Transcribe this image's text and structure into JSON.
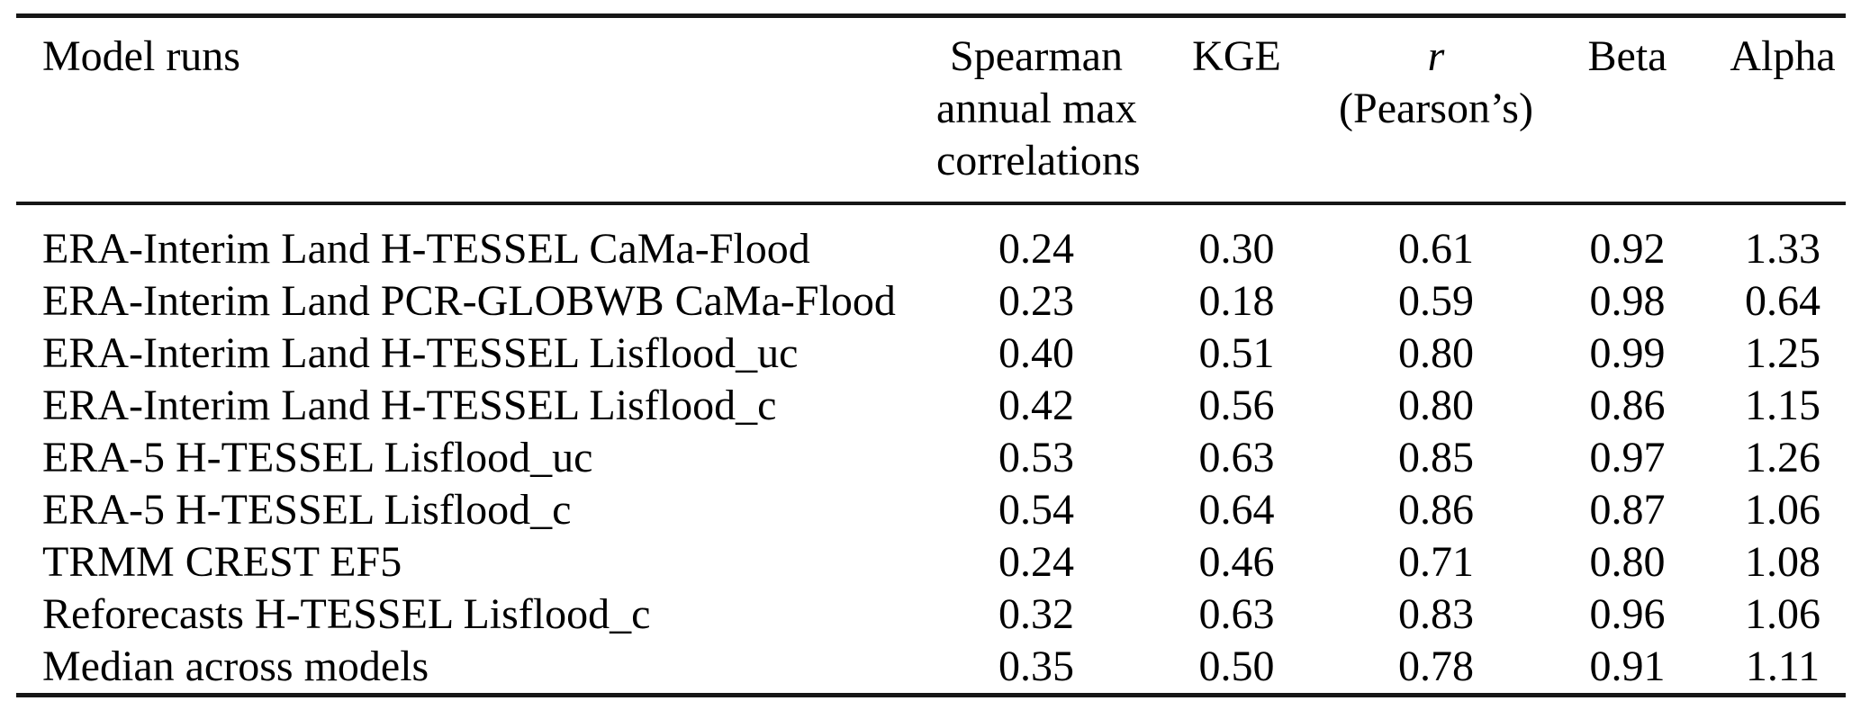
{
  "colors": {
    "background": "#ffffff",
    "text": "#000000",
    "rule": "#161616"
  },
  "table": {
    "header": {
      "model_runs": "Model runs",
      "spearman_line1": "Spearman",
      "spearman_line2": "annual max",
      "spearman_line3": "correlations",
      "kge": "KGE",
      "r_line1": "r",
      "r_line2": "(Pearson’s)",
      "beta": "Beta",
      "alpha": "Alpha"
    },
    "rows": [
      {
        "model": "ERA-Interim Land H-TESSEL CaMa-Flood",
        "values": [
          "0.24",
          "0.30",
          "0.61",
          "0.92",
          "1.33"
        ]
      },
      {
        "model": "ERA-Interim Land PCR-GLOBWB CaMa-Flood",
        "values": [
          "0.23",
          "0.18",
          "0.59",
          "0.98",
          "0.64"
        ]
      },
      {
        "model": "ERA-Interim Land H-TESSEL Lisflood_uc",
        "values": [
          "0.40",
          "0.51",
          "0.80",
          "0.99",
          "1.25"
        ]
      },
      {
        "model": "ERA-Interim Land H-TESSEL Lisflood_c",
        "values": [
          "0.42",
          "0.56",
          "0.80",
          "0.86",
          "1.15"
        ]
      },
      {
        "model": "ERA-5 H-TESSEL Lisflood_uc",
        "values": [
          "0.53",
          "0.63",
          "0.85",
          "0.97",
          "1.26"
        ]
      },
      {
        "model": "ERA-5 H-TESSEL Lisflood_c",
        "values": [
          "0.54",
          "0.64",
          "0.86",
          "0.87",
          "1.06"
        ]
      },
      {
        "model": "TRMM CREST EF5",
        "values": [
          "0.24",
          "0.46",
          "0.71",
          "0.80",
          "1.08"
        ]
      },
      {
        "model": "Reforecasts H-TESSEL Lisflood_c",
        "values": [
          "0.32",
          "0.63",
          "0.83",
          "0.96",
          "1.06"
        ]
      },
      {
        "model": "Median across models",
        "values": [
          "0.35",
          "0.50",
          "0.78",
          "0.91",
          "1.11"
        ]
      }
    ]
  },
  "chart_data": {
    "type": "table",
    "columns": [
      "Model runs",
      "Spearman annual max correlations",
      "KGE",
      "r (Pearson's)",
      "Beta",
      "Alpha"
    ],
    "rows": [
      [
        "ERA-Interim Land H-TESSEL CaMa-Flood",
        0.24,
        0.3,
        0.61,
        0.92,
        1.33
      ],
      [
        "ERA-Interim Land PCR-GLOBWB CaMa-Flood",
        0.23,
        0.18,
        0.59,
        0.98,
        0.64
      ],
      [
        "ERA-Interim Land H-TESSEL Lisflood_uc",
        0.4,
        0.51,
        0.8,
        0.99,
        1.25
      ],
      [
        "ERA-Interim Land H-TESSEL Lisflood_c",
        0.42,
        0.56,
        0.8,
        0.86,
        1.15
      ],
      [
        "ERA-5 H-TESSEL Lisflood_uc",
        0.53,
        0.63,
        0.85,
        0.97,
        1.26
      ],
      [
        "ERA-5 H-TESSEL Lisflood_c",
        0.54,
        0.64,
        0.86,
        0.87,
        1.06
      ],
      [
        "TRMM CREST EF5",
        0.24,
        0.46,
        0.71,
        0.8,
        1.08
      ],
      [
        "Reforecasts H-TESSEL Lisflood_c",
        0.32,
        0.63,
        0.83,
        0.96,
        1.06
      ],
      [
        "Median across models",
        0.35,
        0.5,
        0.78,
        0.91,
        1.11
      ]
    ]
  }
}
